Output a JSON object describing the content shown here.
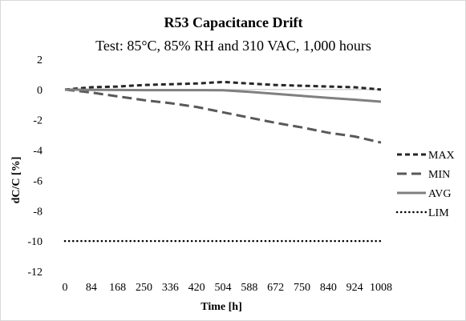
{
  "chart_data": {
    "type": "line",
    "title": "R53 Capacitance Drift",
    "subtitle": "Test: 85°C, 85% RH and 310 VAC, 1,000 hours",
    "xlabel": "Time [h]",
    "ylabel": "dC/C [%]",
    "categories": [
      "0",
      "84",
      "168",
      "250",
      "336",
      "420",
      "504",
      "588",
      "672",
      "750",
      "840",
      "924",
      "1008"
    ],
    "ylim": [
      -12,
      2
    ],
    "yticks": [
      "2",
      "0",
      "-2",
      "-4",
      "-6",
      "-8",
      "-10",
      "-12"
    ],
    "grid": false,
    "legend_position": "right",
    "series": [
      {
        "name": "MAX",
        "style": "dash",
        "color": "#262626",
        "values": [
          0,
          0.15,
          0.2,
          0.3,
          0.35,
          0.4,
          0.5,
          0.4,
          0.3,
          0.25,
          0.2,
          0.15,
          0.0
        ]
      },
      {
        "name": "MIN",
        "style": "longdash",
        "color": "#595959",
        "values": [
          0,
          -0.2,
          -0.45,
          -0.7,
          -0.9,
          -1.15,
          -1.5,
          -1.85,
          -2.2,
          -2.5,
          -2.85,
          -3.1,
          -3.5
        ]
      },
      {
        "name": "AVG",
        "style": "solid",
        "color": "#808080",
        "values": [
          0,
          -0.02,
          -0.03,
          -0.04,
          -0.04,
          -0.04,
          -0.05,
          -0.15,
          -0.28,
          -0.42,
          -0.55,
          -0.67,
          -0.8
        ]
      },
      {
        "name": "LIM",
        "style": "dot",
        "color": "#000000",
        "values": [
          -10,
          -10,
          -10,
          -10,
          -10,
          -10,
          -10,
          -10,
          -10,
          -10,
          -10,
          -10,
          -10
        ]
      }
    ]
  }
}
